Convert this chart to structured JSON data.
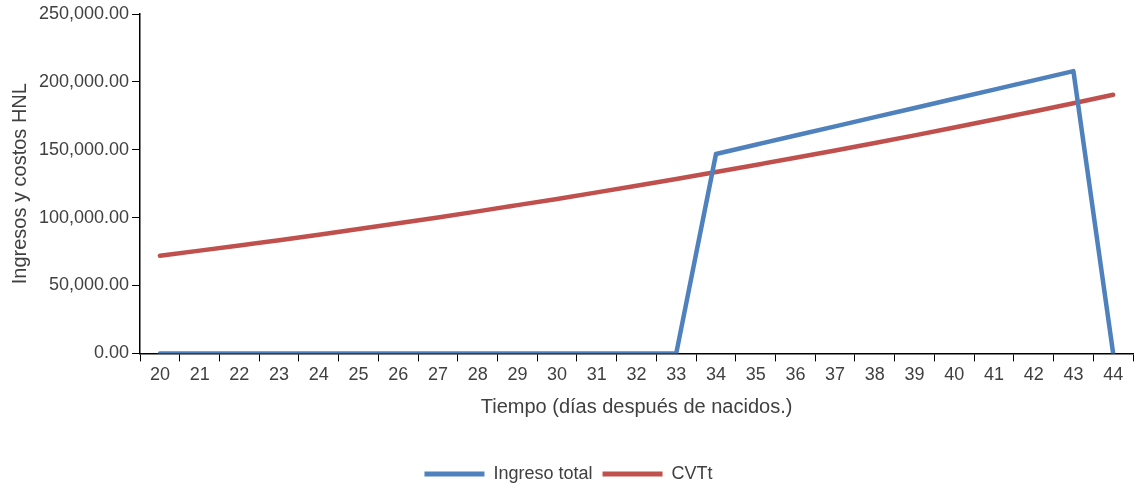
{
  "chart_data": {
    "type": "line",
    "xlabel": "Tiempo (días después de nacidos.)",
    "ylabel": "Ingresos y costos HNL",
    "categories": [
      "20",
      "21",
      "22",
      "23",
      "24",
      "25",
      "26",
      "27",
      "28",
      "29",
      "30",
      "31",
      "32",
      "33",
      "34",
      "35",
      "36",
      "37",
      "38",
      "39",
      "40",
      "41",
      "42",
      "43",
      "44"
    ],
    "series": [
      {
        "name": "Ingreso total",
        "color": "#4f81bd",
        "values": [
          0,
          0,
          0,
          0,
          0,
          0,
          0,
          0,
          0,
          0,
          0,
          0,
          0,
          0,
          146900,
          153700,
          160500,
          167200,
          174000,
          180800,
          187600,
          194300,
          201100,
          207900,
          0
        ]
      },
      {
        "name": "CVTt",
        "color": "#c0504d",
        "values": [
          72000,
          75700,
          79500,
          83400,
          87400,
          91600,
          95800,
          100100,
          104600,
          109200,
          113800,
          118600,
          123500,
          128500,
          133600,
          138800,
          144100,
          149500,
          155000,
          160600,
          166400,
          172300,
          178200,
          184300,
          190500
        ]
      }
    ],
    "ylim": [
      0,
      250000
    ],
    "yticks": [
      {
        "value": 0,
        "label": "0.00"
      },
      {
        "value": 50000,
        "label": "50,000.00"
      },
      {
        "value": 100000,
        "label": "100,000.00"
      },
      {
        "value": 150000,
        "label": "150,000.00"
      },
      {
        "value": 200000,
        "label": "200,000.00"
      },
      {
        "value": 250000,
        "label": "250,000.00"
      }
    ],
    "grid": false,
    "legend": "bottom",
    "marker": "none",
    "line_style": "solid"
  }
}
